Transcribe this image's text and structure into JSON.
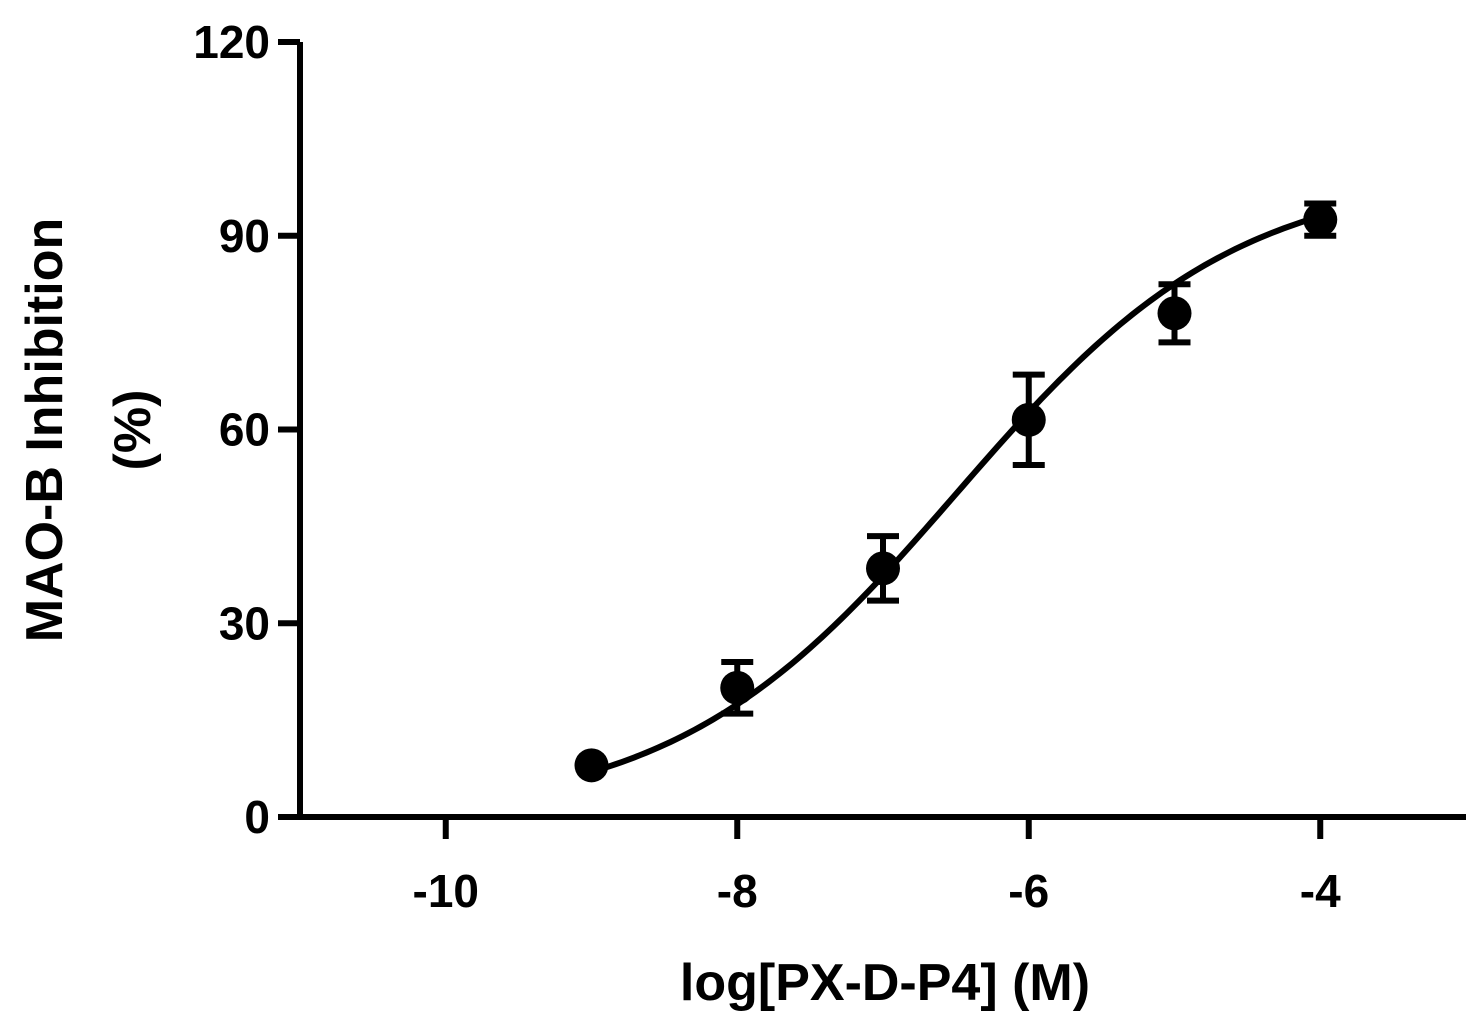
{
  "chart_data": {
    "type": "scatter",
    "xlabel": "log[PX-D-P4] (M)",
    "ylabel_lines": [
      "MAO-B Inhibition",
      "(%)"
    ],
    "xlim": [
      -11,
      -3
    ],
    "ylim": [
      0,
      120
    ],
    "xticks": [
      -10,
      -8,
      -6,
      -4
    ],
    "yticks": [
      0,
      30,
      60,
      90,
      120
    ],
    "grid": false,
    "series": [
      {
        "points": [
          {
            "x": -9,
            "y": 8,
            "err": 0
          },
          {
            "x": -8,
            "y": 20,
            "err": 4
          },
          {
            "x": -7,
            "y": 38.5,
            "err": 5
          },
          {
            "x": -6,
            "y": 61.5,
            "err": 7
          },
          {
            "x": -5,
            "y": 78,
            "err": 4.5
          },
          {
            "x": -4,
            "y": 92.5,
            "err": 2.5
          }
        ],
        "fit": {
          "model": "sigmoidal",
          "bottom": 0,
          "top": 100,
          "log_ic50": -6.5,
          "hill_slope": 0.45,
          "x_range": [
            -9,
            -4
          ]
        }
      }
    ]
  }
}
